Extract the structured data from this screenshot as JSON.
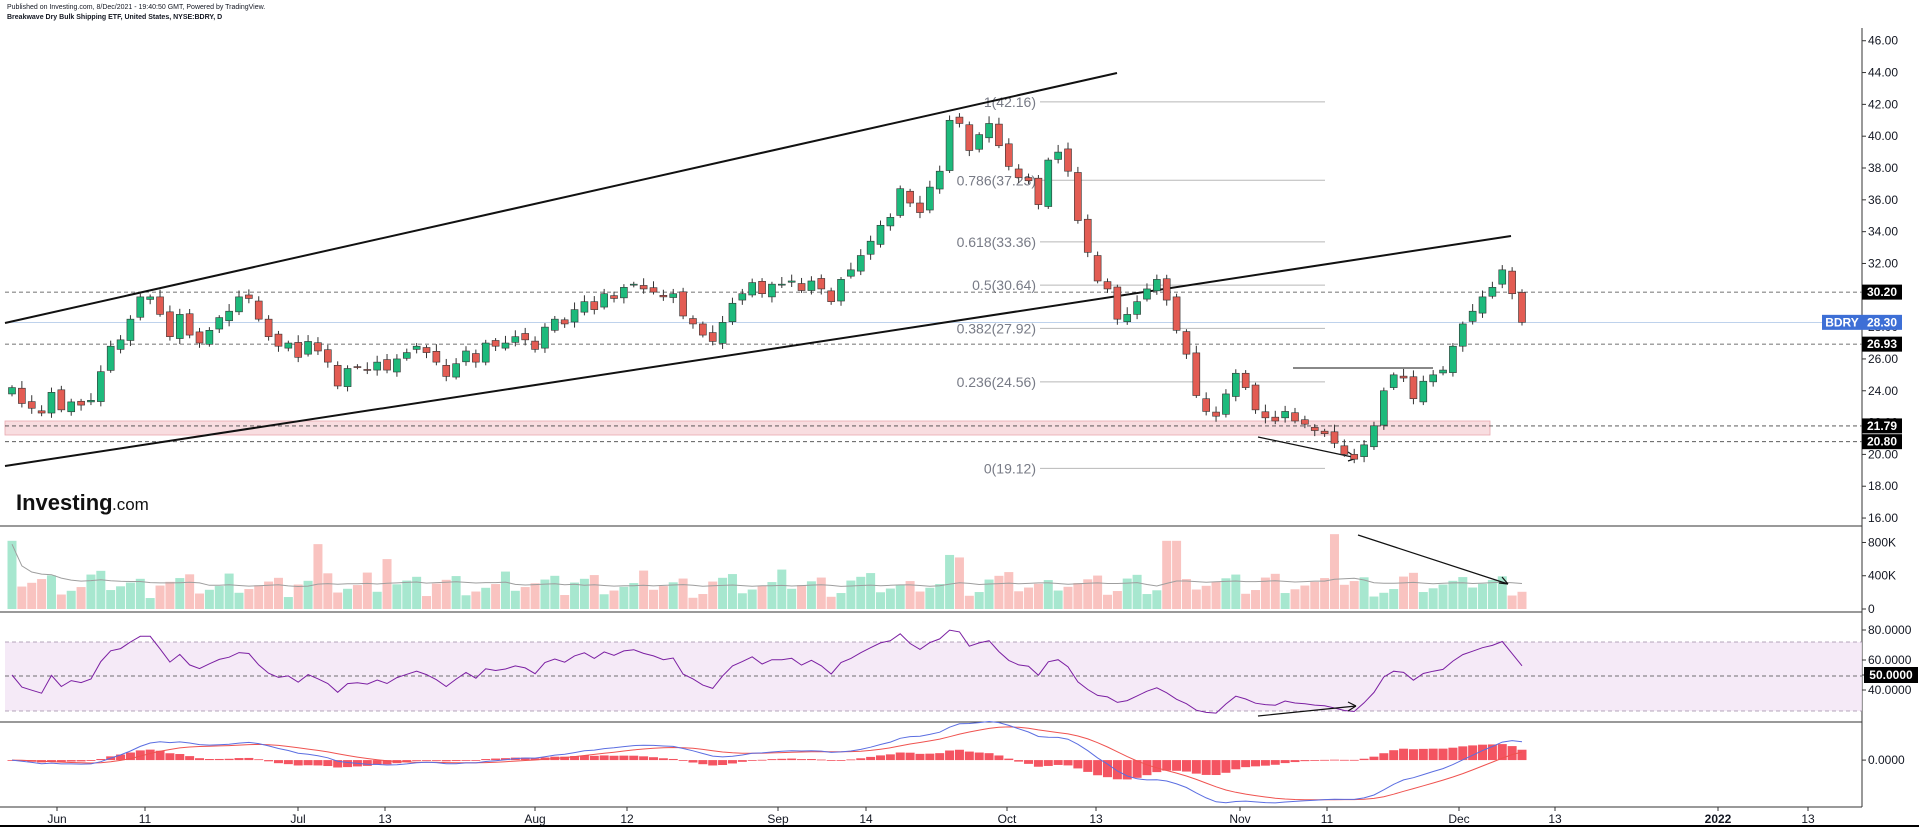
{
  "header": {
    "published": "Published on Investing.com, 8/Dec/2021 - 19:40:50 GMT, Powered by TradingView.",
    "instrument": "Breakwave Dry Bulk Shipping ETF, United States, NYSE:BDRY, D"
  },
  "logo": {
    "name": "Investing",
    "suffix": ".com"
  },
  "colors": {
    "up": "#26a69a",
    "up_body": "#1dba7c",
    "down": "#ef5350",
    "down_body": "#e35c53",
    "rsi": "#7b1fa2",
    "macd": "#5b6ee1",
    "signal": "#ef5350",
    "hist": "#f23645",
    "vol_up": "#a7e7cf",
    "vol_down": "#f9c3c0"
  },
  "chart_data": [
    {
      "type": "candlestick",
      "panel": "price",
      "symbol": "BDRY",
      "ylim": [
        15.5,
        46.8
      ],
      "yticks": [
        "46.00",
        "44.00",
        "42.00",
        "40.00",
        "38.00",
        "36.00",
        "34.00",
        "32.00",
        "30.00",
        "28.00",
        "26.00",
        "24.00",
        "22.00",
        "20.00",
        "18.00",
        "16.00"
      ],
      "xticks": [
        "Jun",
        "11",
        "Jul",
        "13",
        "Aug",
        "12",
        "Sep",
        "14",
        "Oct",
        "13",
        "Nov",
        "11",
        "Dec",
        "13",
        "2022",
        "13"
      ],
      "price_tags": [
        {
          "label": "30.20",
          "value": 30.2,
          "style": "black"
        },
        {
          "label": "BDRY",
          "value": 28.3,
          "style": "blue"
        },
        {
          "label": "28.30",
          "value": 28.3,
          "style": "blue"
        },
        {
          "label": "26.93",
          "value": 26.93,
          "style": "black"
        },
        {
          "label": "21.79",
          "value": 21.79,
          "style": "black"
        },
        {
          "label": "20.80",
          "value": 20.8,
          "style": "black"
        }
      ],
      "fibonacci": [
        {
          "label": "1(42.16)",
          "value": 42.16
        },
        {
          "label": "0.786(37.23)",
          "value": 37.23
        },
        {
          "label": "0.618(33.36)",
          "value": 33.36
        },
        {
          "label": "0.5(30.64)",
          "value": 30.64
        },
        {
          "label": "0.382(27.92)",
          "value": 27.92
        },
        {
          "label": "0.236(24.56)",
          "value": 24.56
        },
        {
          "label": "0(19.12)",
          "value": 19.12
        }
      ],
      "closes": [
        24.2,
        23.2,
        22.9,
        22.6,
        23.9,
        22.8,
        23.3,
        23.1,
        23.4,
        25.2,
        26.8,
        27.2,
        28.5,
        29.9,
        29.9,
        28.8,
        27.4,
        28.8,
        27.5,
        27.0,
        27.8,
        28.6,
        29.0,
        29.9,
        29.8,
        28.5,
        27.4,
        26.8,
        27.0,
        26.1,
        27.1,
        26.5,
        25.8,
        24.3,
        25.4,
        25.5,
        25.3,
        25.8,
        25.3,
        26.0,
        26.4,
        26.8,
        26.4,
        25.8,
        24.9,
        25.7,
        26.5,
        25.8,
        27.0,
        26.8,
        27.0,
        27.4,
        27.2,
        26.6,
        28.0,
        28.5,
        28.2,
        29.1,
        29.6,
        29.1,
        30.1,
        29.8,
        30.5,
        30.7,
        30.4,
        30.2,
        29.9,
        30.1,
        28.7,
        28.2,
        27.5,
        27.1,
        28.3,
        29.5,
        30.1,
        30.8,
        30.1,
        30.7,
        30.7,
        30.9,
        30.3,
        30.9,
        30.4,
        29.6,
        31.0,
        31.6,
        32.5,
        33.4,
        34.4,
        34.9,
        36.7,
        35.8,
        35.2,
        36.8,
        37.8,
        41.0,
        40.8,
        39.1,
        40.1,
        40.8,
        39.4,
        38.1,
        37.4,
        37.2,
        35.7,
        38.5,
        39.0,
        37.8,
        34.7,
        32.7,
        30.9,
        30.4,
        28.5,
        28.8,
        29.6,
        30.4,
        31.0,
        29.7,
        27.8,
        26.3,
        23.7,
        22.7,
        22.4,
        23.8,
        25.1,
        24.2,
        22.8,
        22.3,
        22.1,
        22.7,
        22.1,
        21.9,
        21.5,
        21.3,
        20.7,
        20.0,
        19.7,
        20.6,
        21.8,
        24.0,
        25.0,
        24.8,
        23.5,
        24.6,
        25.0,
        25.3,
        26.8,
        28.2,
        29.0,
        29.9,
        30.5,
        31.6,
        30.1,
        28.3
      ]
    },
    {
      "type": "bar",
      "panel": "volume",
      "yticks": [
        "800K",
        "400K",
        "0"
      ],
      "ylim": [
        0,
        950
      ]
    },
    {
      "type": "line",
      "panel": "RSI",
      "yticks": [
        "80.0000",
        "60.0000",
        "50.0000",
        "40.0000"
      ],
      "band": [
        30,
        70
      ],
      "ylim": [
        20,
        90
      ]
    },
    {
      "type": "line",
      "panel": "MACD",
      "yticks": [
        "0.0000"
      ],
      "ylim": [
        -3.2,
        2.5
      ]
    }
  ]
}
